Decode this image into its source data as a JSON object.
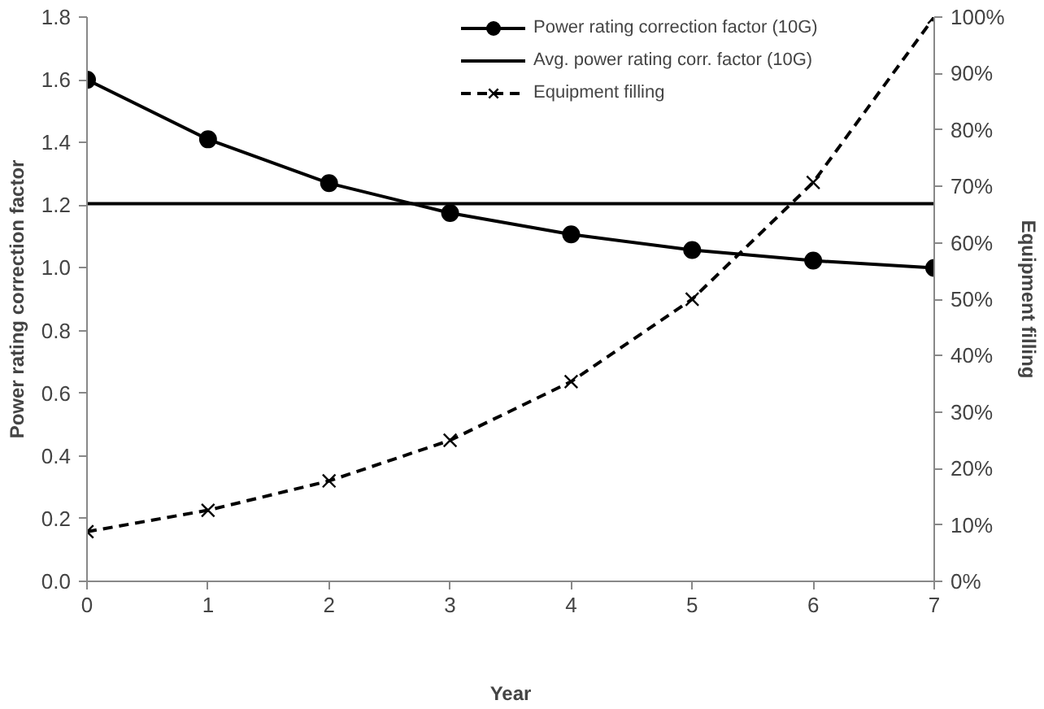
{
  "chart_data": {
    "type": "line",
    "xlabel": "Year",
    "ylabel": "Power rating correction factor",
    "y2label": "Equipment filling",
    "x": [
      0,
      1,
      2,
      3,
      4,
      5,
      6,
      7
    ],
    "xlim": [
      0,
      7
    ],
    "xticks": [
      0,
      1,
      2,
      3,
      4,
      5,
      6,
      7
    ],
    "ylim": [
      0,
      1.8
    ],
    "yticks": [
      {
        "value": 0,
        "label": "0.0"
      },
      {
        "value": 0.2,
        "label": "0.2"
      },
      {
        "value": 0.4,
        "label": "0.4"
      },
      {
        "value": 0.6,
        "label": "0.6"
      },
      {
        "value": 0.8,
        "label": "0.8"
      },
      {
        "value": 1.0,
        "label": "1.0"
      },
      {
        "value": 1.2,
        "label": "1.2"
      },
      {
        "value": 1.4,
        "label": "1.4"
      },
      {
        "value": 1.6,
        "label": "1.6"
      },
      {
        "value": 1.8,
        "label": "1.8"
      }
    ],
    "y2lim": [
      0,
      100
    ],
    "y2ticks": [
      {
        "value": 0,
        "label": "0%"
      },
      {
        "value": 10,
        "label": "10%"
      },
      {
        "value": 20,
        "label": "20%"
      },
      {
        "value": 30,
        "label": "30%"
      },
      {
        "value": 40,
        "label": "40%"
      },
      {
        "value": 50,
        "label": "50%"
      },
      {
        "value": 60,
        "label": "60%"
      },
      {
        "value": 70,
        "label": "70%"
      },
      {
        "value": 80,
        "label": "80%"
      },
      {
        "value": 90,
        "label": "90%"
      },
      {
        "value": 100,
        "label": "100%"
      }
    ],
    "grid": false,
    "legend": "top right",
    "series": [
      {
        "name": "Power rating correction factor (10G)",
        "color": "#000000",
        "marker": "circle",
        "line_style": "solid",
        "values": [
          1.6,
          1.41,
          1.27,
          1.175,
          1.107,
          1.057,
          1.023,
          1.0
        ]
      },
      {
        "name": "Avg. power rating corr. factor (10G)",
        "color": "#000000",
        "marker": "none",
        "line_style": "solid",
        "x": [
          0,
          7
        ],
        "values": [
          1.205,
          1.205
        ]
      },
      {
        "name": "Equipment filling",
        "color": "#000000",
        "marker": "cross",
        "line_style": "dashed",
        "axis": "y2",
        "values": [
          8.8,
          12.6,
          17.8,
          25,
          35.4,
          50,
          70.7,
          100
        ]
      }
    ]
  }
}
